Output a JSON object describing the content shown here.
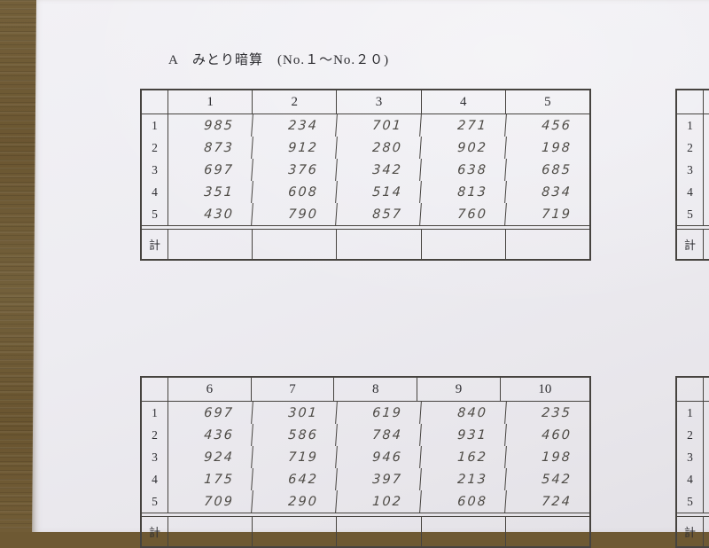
{
  "page": {
    "title": "A　みとり暗算　(No.１～No.２０)"
  },
  "colors": {
    "paper": "#efeef2",
    "wood": "#6e5933",
    "table_line": "#46433f",
    "handwriting_ink": "#4f4c47",
    "print_text": "#2e2e32"
  },
  "tables": [
    {
      "name": "mitori-anzan-no1-5",
      "columns": [
        "1",
        "2",
        "3",
        "4",
        "5"
      ],
      "row_labels": [
        "1",
        "2",
        "3",
        "4",
        "5"
      ],
      "rows": [
        [
          "985",
          "234",
          "701",
          "271",
          "456"
        ],
        [
          "873",
          "912",
          "280",
          "902",
          "198"
        ],
        [
          "697",
          "376",
          "342",
          "638",
          "685"
        ],
        [
          "351",
          "608",
          "514",
          "813",
          "834"
        ],
        [
          "430",
          "790",
          "857",
          "760",
          "719"
        ]
      ],
      "total_label": "計",
      "total_values": [
        "",
        "",
        "",
        "",
        ""
      ]
    },
    {
      "name": "mitori-anzan-no6-10",
      "columns": [
        "6",
        "7",
        "8",
        "9",
        "10"
      ],
      "row_labels": [
        "1",
        "2",
        "3",
        "4",
        "5"
      ],
      "rows": [
        [
          "697",
          "301",
          "619",
          "840",
          "235"
        ],
        [
          "436",
          "586",
          "784",
          "931",
          "460"
        ],
        [
          "924",
          "719",
          "946",
          "162",
          "198"
        ],
        [
          "175",
          "642",
          "397",
          "213",
          "542"
        ],
        [
          "709",
          "290",
          "102",
          "608",
          "724"
        ]
      ],
      "total_label": "計",
      "total_values": [
        "",
        "",
        "",
        "",
        ""
      ]
    }
  ],
  "partial_tables": [
    {
      "name": "mitori-anzan-right-top-partial",
      "columns": [
        ""
      ],
      "row_labels": [
        "1",
        "2",
        "3",
        "4",
        "5"
      ],
      "rows": [
        [
          ""
        ],
        [
          ""
        ],
        [
          ""
        ],
        [
          ""
        ],
        [
          ""
        ]
      ],
      "total_label": "計",
      "total_values": [
        ""
      ]
    },
    {
      "name": "mitori-anzan-right-bottom-partial",
      "columns": [
        ""
      ],
      "row_labels": [
        "1",
        "2",
        "3",
        "4",
        "5"
      ],
      "rows": [
        [
          ""
        ],
        [
          ""
        ],
        [
          ""
        ],
        [
          ""
        ],
        [
          ""
        ]
      ],
      "total_label": "計",
      "total_values": [
        ""
      ]
    }
  ]
}
